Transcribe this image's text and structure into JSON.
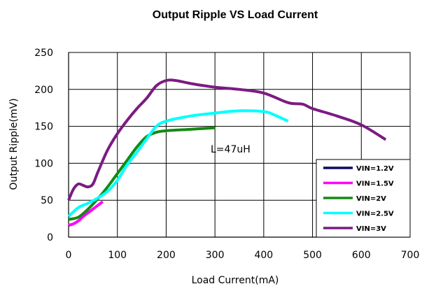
{
  "chart_data": {
    "type": "line",
    "title": "Output Ripple VS Load Current",
    "xlabel": "Load Current(mA)",
    "ylabel": "Output Ripple(mV)",
    "xlim": [
      0,
      700
    ],
    "ylim": [
      0,
      250
    ],
    "xticks": [
      "0",
      "100",
      "200",
      "300",
      "400",
      "500",
      "600",
      "700"
    ],
    "yticks": [
      "0",
      "50",
      "100",
      "150",
      "200",
      "250"
    ],
    "grid": true,
    "legend_position": "bottom-right",
    "annotation": "L=47uH",
    "series": [
      {
        "name": "VIN=1.2V",
        "color": "#0b0b60",
        "x": [],
        "y": []
      },
      {
        "name": "VIN=1.5V",
        "color": "#ff00ff",
        "x": [
          0,
          10,
          20,
          30,
          40,
          50,
          60,
          70
        ],
        "y": [
          16,
          18,
          22,
          28,
          33,
          38,
          43,
          48
        ]
      },
      {
        "name": "VIN=2V",
        "color": "#138a13",
        "x": [
          0,
          20,
          40,
          60,
          80,
          100,
          120,
          140,
          160,
          180,
          200,
          250,
          300
        ],
        "y": [
          24,
          27,
          38,
          52,
          68,
          86,
          104,
          122,
          136,
          142,
          144,
          146,
          148
        ]
      },
      {
        "name": "VIN=2.5V",
        "color": "#00ffff",
        "x": [
          0,
          20,
          40,
          60,
          80,
          100,
          120,
          140,
          160,
          180,
          200,
          250,
          300,
          350,
          400,
          420,
          450
        ],
        "y": [
          28,
          40,
          46,
          53,
          62,
          77,
          98,
          115,
          133,
          150,
          157,
          164,
          168,
          171,
          170,
          166,
          157
        ]
      },
      {
        "name": "VIN=3V",
        "color": "#7b1b82",
        "x": [
          0,
          10,
          20,
          30,
          40,
          50,
          60,
          80,
          100,
          120,
          140,
          160,
          180,
          200,
          220,
          250,
          300,
          350,
          400,
          450,
          480,
          500,
          550,
          600,
          650
        ],
        "y": [
          50,
          65,
          72,
          70,
          68,
          72,
          88,
          118,
          140,
          158,
          174,
          188,
          205,
          212,
          212,
          208,
          203,
          200,
          195,
          182,
          180,
          174,
          164,
          152,
          132
        ]
      }
    ]
  }
}
